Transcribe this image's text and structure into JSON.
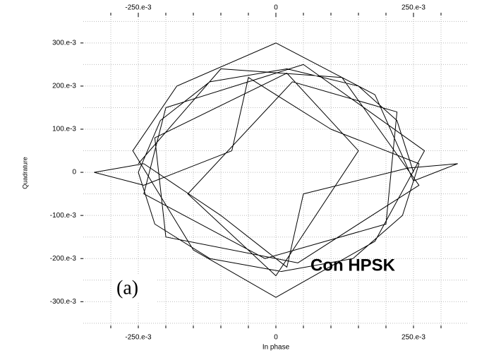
{
  "chart_data": {
    "type": "line",
    "xlabel": "In phase",
    "ylabel": "Quadrature",
    "annotations": [
      "Con HPSK",
      "(a)"
    ],
    "xlim": [
      -0.35,
      0.35
    ],
    "ylim": [
      -0.365,
      0.38
    ],
    "xticks": [
      {
        "value": -0.25,
        "label": "-250.e-3"
      },
      0,
      {
        "value": 0.25,
        "label": "250.e-3"
      }
    ],
    "yticks": [
      {
        "value": 0.3,
        "label": "300.e-3"
      },
      {
        "value": 0.2,
        "label": "200.e-3"
      },
      {
        "value": 0.1,
        "label": "100.e-3"
      },
      0,
      {
        "value": -0.1,
        "label": "-100.e-3"
      },
      {
        "value": -0.2,
        "label": "-200.e-3"
      },
      {
        "value": -0.3,
        "label": "-300.e-3"
      }
    ],
    "xgrid": [
      -0.3,
      -0.25,
      -0.2,
      -0.15,
      -0.1,
      -0.05,
      0,
      0.05,
      0.1,
      0.15,
      0.2,
      0.25,
      0.3
    ],
    "ygrid": [
      -0.35,
      -0.3,
      -0.25,
      -0.2,
      -0.15,
      -0.1,
      -0.05,
      0,
      0.05,
      0.1,
      0.15,
      0.2,
      0.25,
      0.3,
      0.35
    ],
    "grid": true,
    "series": [
      {
        "color": "#000000",
        "x": [
          0.25,
          0.22,
          0.15,
          0.02,
          -0.12,
          -0.21,
          -0.25,
          -0.22,
          -0.12,
          0.01,
          0.14,
          0.23,
          0.26,
          0.1,
          -0.05,
          -0.08,
          -0.24,
          -0.33,
          -0.24,
          -0.1,
          0.02,
          0.05,
          0.24,
          0.33,
          0.25,
          0.18,
          0.0,
          -0.18,
          -0.26,
          -0.15,
          0.0,
          0.18,
          0.27,
          0.05,
          -0.2,
          -0.24,
          -0.02,
          0.2,
          0.22,
          0.03,
          -0.16,
          0.0,
          0.15,
          0.02,
          -0.22,
          -0.2,
          0.04,
          0.26,
          0.12,
          -0.1,
          -0.25
        ],
        "values": [
          0.0,
          0.12,
          0.2,
          0.24,
          0.21,
          0.12,
          0.0,
          -0.12,
          -0.2,
          -0.23,
          -0.2,
          -0.1,
          0.02,
          0.1,
          0.22,
          0.05,
          -0.03,
          0.0,
          0.02,
          -0.1,
          -0.22,
          -0.05,
          0.01,
          0.02,
          -0.02,
          0.18,
          0.3,
          0.2,
          0.05,
          -0.18,
          -0.29,
          -0.16,
          0.05,
          0.25,
          0.15,
          -0.05,
          -0.2,
          -0.12,
          0.14,
          0.21,
          -0.05,
          -0.24,
          0.05,
          0.23,
          0.08,
          -0.15,
          -0.21,
          -0.03,
          0.22,
          0.24,
          0.02
        ]
      }
    ]
  }
}
